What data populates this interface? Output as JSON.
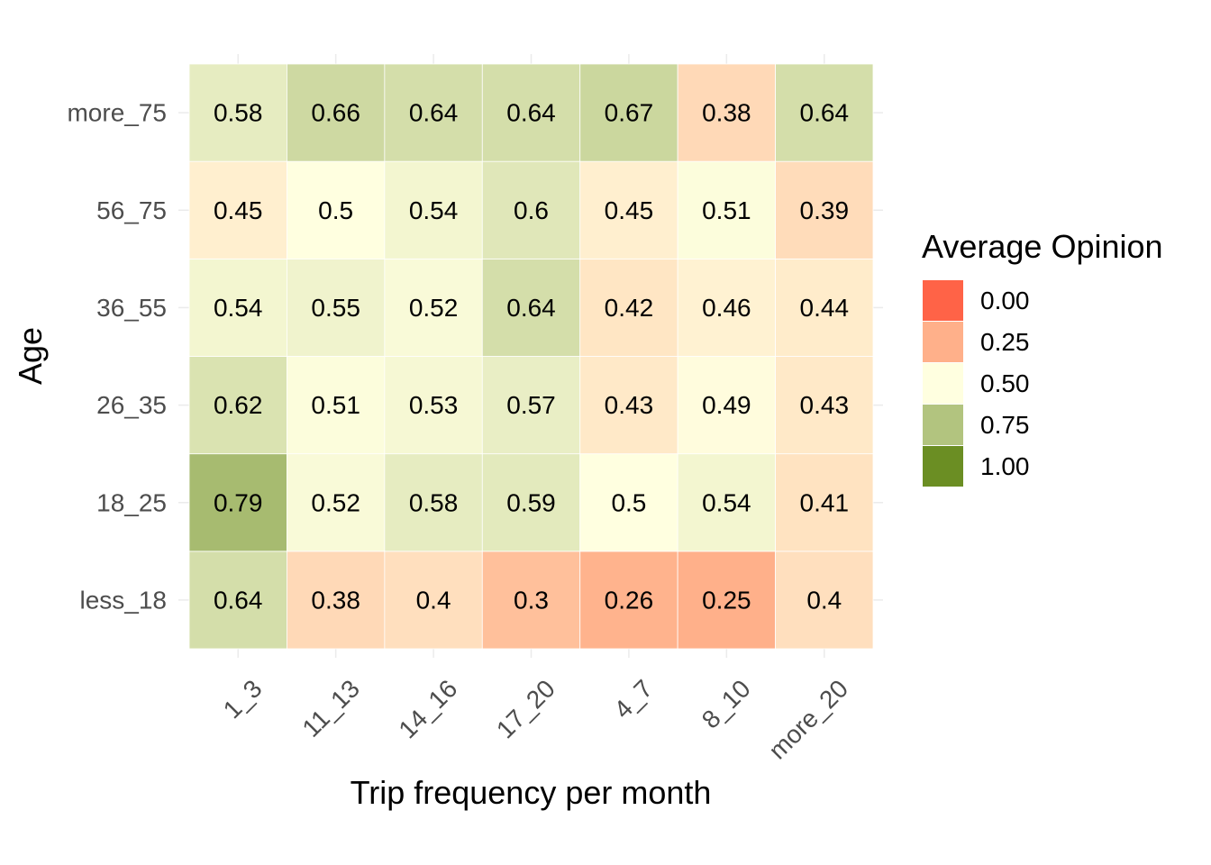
{
  "chart_data": {
    "type": "heatmap",
    "xlabel": "Trip frequency per month",
    "ylabel": "Age",
    "x_categories": [
      "1_3",
      "11_13",
      "14_16",
      "17_20",
      "4_7",
      "8_10",
      "more_20"
    ],
    "y_categories": [
      "less_18",
      "18_25",
      "26_35",
      "36_55",
      "56_75",
      "more_75"
    ],
    "values": [
      [
        0.64,
        0.38,
        0.4,
        0.3,
        0.26,
        0.25,
        0.4
      ],
      [
        0.79,
        0.52,
        0.58,
        0.59,
        0.5,
        0.54,
        0.41
      ],
      [
        0.62,
        0.51,
        0.53,
        0.57,
        0.43,
        0.49,
        0.43
      ],
      [
        0.54,
        0.55,
        0.52,
        0.64,
        0.42,
        0.46,
        0.44
      ],
      [
        0.45,
        0.5,
        0.54,
        0.6,
        0.45,
        0.51,
        0.39
      ],
      [
        0.58,
        0.66,
        0.64,
        0.64,
        0.67,
        0.38,
        0.64
      ]
    ],
    "value_labels": [
      [
        "0.64",
        "0.38",
        "0.4",
        "0.3",
        "0.26",
        "0.25",
        "0.4"
      ],
      [
        "0.79",
        "0.52",
        "0.58",
        "0.59",
        "0.5",
        "0.54",
        "0.41"
      ],
      [
        "0.62",
        "0.51",
        "0.53",
        "0.57",
        "0.43",
        "0.49",
        "0.43"
      ],
      [
        "0.54",
        "0.55",
        "0.52",
        "0.64",
        "0.42",
        "0.46",
        "0.44"
      ],
      [
        "0.45",
        "0.5",
        "0.54",
        "0.6",
        "0.45",
        "0.51",
        "0.39"
      ],
      [
        "0.58",
        "0.66",
        "0.64",
        "0.64",
        "0.67",
        "0.38",
        "0.64"
      ]
    ],
    "legend": {
      "title": "Average Opinion",
      "placement": "right",
      "breaks": [
        0.0,
        0.25,
        0.5,
        0.75,
        1.0
      ],
      "labels": [
        "0.00",
        "0.25",
        "0.50",
        "0.75",
        "1.00"
      ]
    },
    "color_scale": {
      "domain": [
        0,
        0.25,
        0.5,
        0.75,
        1
      ],
      "colors": [
        "#ff6347",
        "#ffb08a",
        "#ffffe0",
        "#b2c47f",
        "#6b8e23"
      ]
    },
    "grid": true
  }
}
